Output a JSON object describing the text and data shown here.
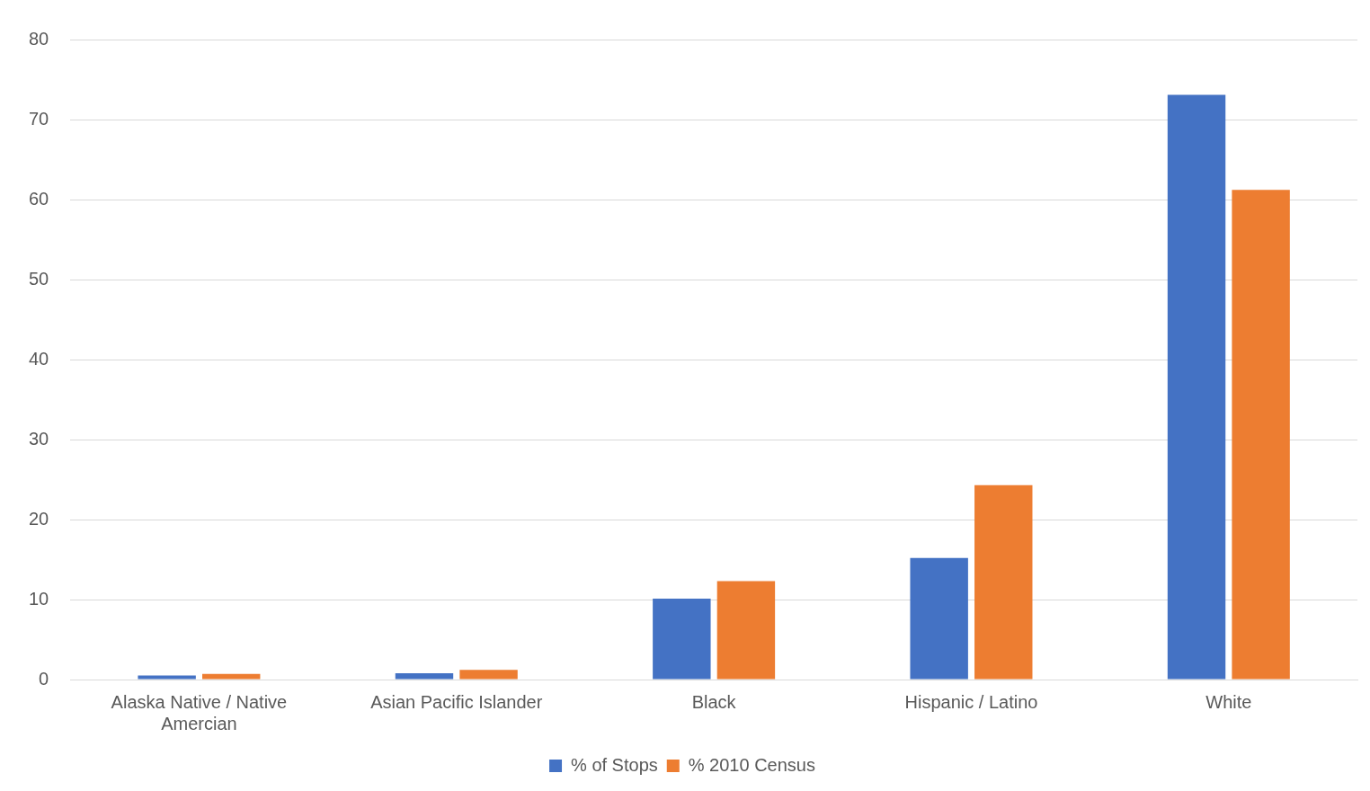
{
  "chart_data": {
    "type": "bar",
    "categories": [
      "Alaska Native / Native Amercian",
      "Asian Pacific Islander",
      "Black",
      "Hispanic / Latino",
      "White"
    ],
    "series": [
      {
        "name": "% of Stops",
        "color": "#4472c4",
        "values": [
          0.5,
          0.8,
          10.1,
          15.2,
          73.1
        ]
      },
      {
        "name": "% 2010 Census",
        "color": "#ed7d31",
        "values": [
          0.7,
          1.2,
          12.3,
          24.3,
          61.2
        ]
      }
    ],
    "ylim": [
      0,
      80
    ],
    "yticks": [
      0,
      10,
      20,
      30,
      40,
      50,
      60,
      70,
      80
    ],
    "grid": "y",
    "legend": "bottom"
  }
}
